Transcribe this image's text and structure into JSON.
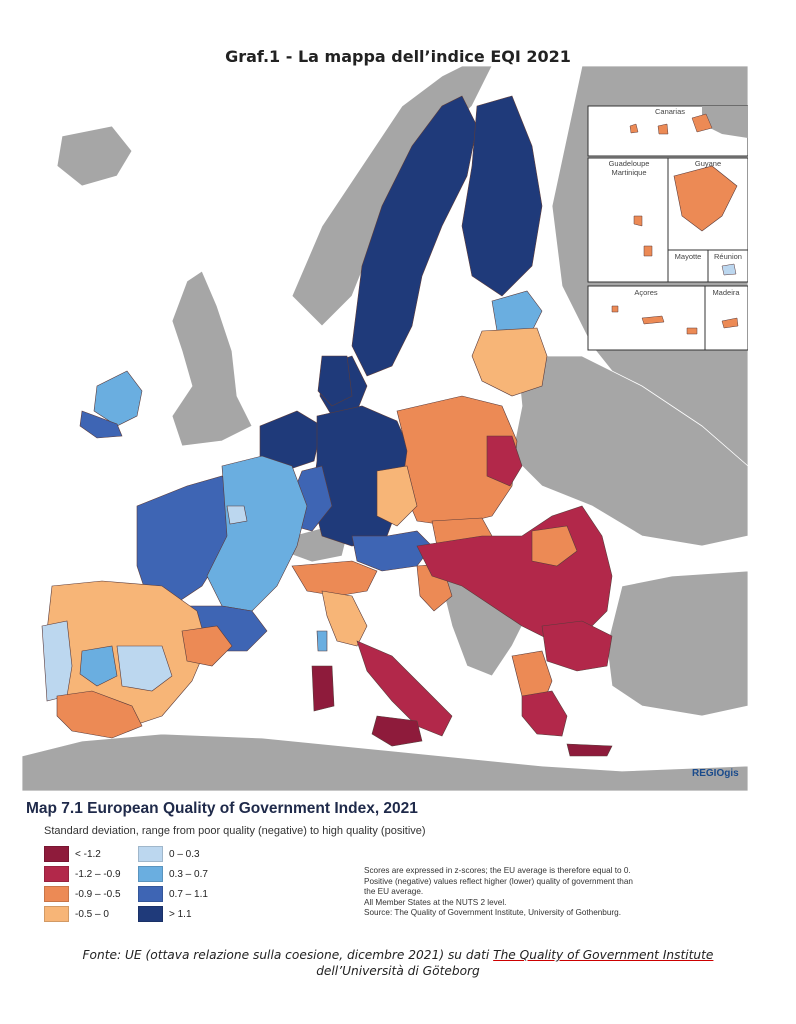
{
  "header": {
    "title": "Graf.1 - La mappa dell’indice EQI 2021"
  },
  "map": {
    "title": "Map 7.1 European Quality of Government Index, 2021",
    "subtitle": "Standard deviation, range from poor quality (negative) to high quality (positive)",
    "logo_text": "REGIOgis",
    "colors": {
      "sea": "#ffffff",
      "non_eu_land": "#a6a6a6",
      "border": "#5a3b3b"
    },
    "insets": [
      {
        "label": "Canarias"
      },
      {
        "label": "Guadeloupe"
      },
      {
        "label": "Martinique"
      },
      {
        "label": "Guyane"
      },
      {
        "label": "Mayotte"
      },
      {
        "label": "Réunion"
      },
      {
        "label": "Açores"
      },
      {
        "label": "Madeira"
      }
    ]
  },
  "legend": {
    "items": [
      {
        "label": "< -1.2",
        "color": "#8e1b3b"
      },
      {
        "label": "-1.2 – -0.9",
        "color": "#b2284a"
      },
      {
        "label": "-0.9 – -0.5",
        "color": "#ec8a55"
      },
      {
        "label": "-0.5 – 0",
        "color": "#f7b577"
      },
      {
        "label": "0 – 0.3",
        "color": "#bcd7ef"
      },
      {
        "label": "0.3 – 0.7",
        "color": "#6aaee0"
      },
      {
        "label": "0.7 – 1.1",
        "color": "#3e65b4"
      },
      {
        "label": "> 1.1",
        "color": "#1f3a7a"
      }
    ]
  },
  "notes": [
    "Scores are expressed in z-scores; the EU average is therefore equal to 0.",
    "Positive (negative) values reflect higher (lower) quality of government than",
    "the EU average.",
    "All Member States at the NUTS 2 level.",
    "Source: The Quality of Government Institute, University of Gothenburg."
  ],
  "source": {
    "prefix": "Fonte: UE (ottava relazione sulla coesione, dicembre 2021) su dati ",
    "link": "The Quality of Government Institute",
    "line2": "dell’Università di Göteborg"
  }
}
